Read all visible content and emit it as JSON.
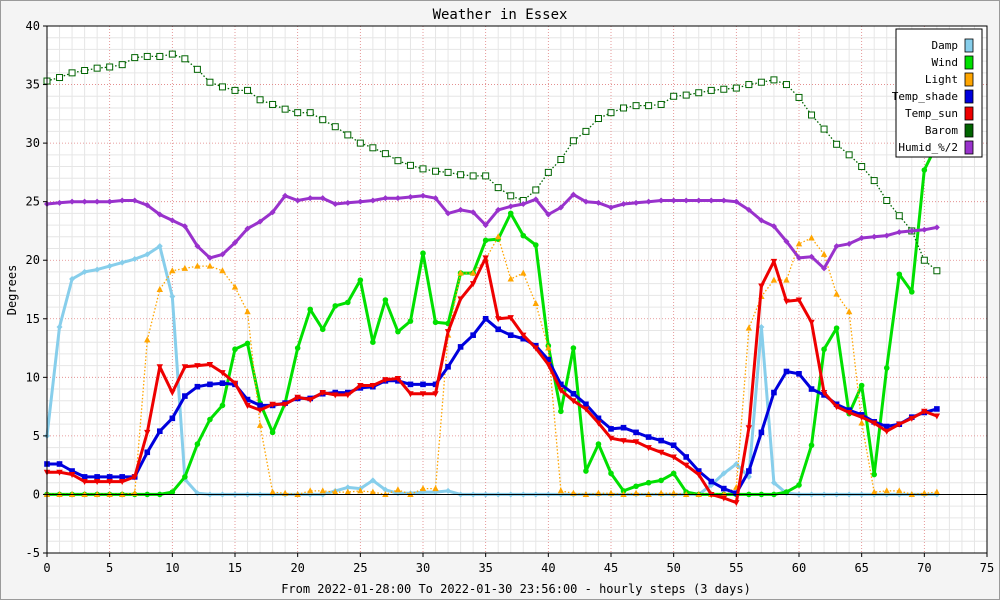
{
  "chart_data": {
    "type": "line",
    "title": "Weather in Essex",
    "xlabel": "From 2022-01-28:00 To 2022-01-30 23:56:00 - hourly steps (3 days)",
    "ylabel": "Degrees",
    "xlim": [
      0,
      75
    ],
    "ylim": [
      -5,
      40
    ],
    "xticks": [
      0,
      5,
      10,
      15,
      20,
      25,
      30,
      35,
      40,
      45,
      50,
      55,
      60,
      65,
      70,
      75
    ],
    "yticks": [
      -5,
      0,
      5,
      10,
      15,
      20,
      25,
      30,
      35,
      40
    ],
    "grid": true,
    "legend_position": "top-right",
    "series": [
      {
        "name": "Damp",
        "color": "#87ceeb",
        "style": "thick",
        "marker": "diamond",
        "y": [
          5.0,
          14.3,
          18.4,
          19.0,
          19.2,
          19.5,
          19.8,
          20.1,
          20.5,
          21.2,
          16.9,
          1.3,
          0.1,
          0.0,
          0.0,
          0.0,
          0.0,
          0.0,
          0.0,
          0.0,
          0.0,
          0.0,
          0.0,
          0.3,
          0.6,
          0.5,
          1.2,
          0.4,
          0.1,
          0.1,
          0.2,
          0.2,
          0.3,
          0.0,
          0.0,
          0.0,
          0.0,
          0.0,
          0.0,
          0.0,
          0.0,
          0.0,
          0.0,
          0.0,
          0.0,
          0.0,
          0.0,
          0.0,
          0.0,
          0.0,
          0.0,
          0.0,
          0.0,
          0.8,
          1.8,
          2.6,
          1.5,
          14.3,
          1.0,
          0.1,
          0.0,
          0.0,
          0.0,
          0.0,
          0.0,
          0.0,
          0.0,
          0.0,
          0.0,
          0.0,
          0.0,
          0.0
        ]
      },
      {
        "name": "Wind",
        "color": "#00e000",
        "style": "thick",
        "marker": "circle",
        "y": [
          0.0,
          0.0,
          0.0,
          0.0,
          0.0,
          0.0,
          0.0,
          0.0,
          0.0,
          0.0,
          0.2,
          1.5,
          4.3,
          6.4,
          7.6,
          12.4,
          12.9,
          7.8,
          5.3,
          7.8,
          12.5,
          15.8,
          14.1,
          16.1,
          16.4,
          18.3,
          13.0,
          16.6,
          13.9,
          14.8,
          20.6,
          14.7,
          14.6,
          18.9,
          18.9,
          21.7,
          21.8,
          24.0,
          22.1,
          21.3,
          12.7,
          7.1,
          12.5,
          2.0,
          4.3,
          1.8,
          0.3,
          0.7,
          1.0,
          1.2,
          1.8,
          0.2,
          0.0,
          0.0,
          0.0,
          0.0,
          0.0,
          0.0,
          0.0,
          0.2,
          0.8,
          4.2,
          12.4,
          14.2,
          6.9,
          9.3,
          1.7,
          10.8,
          18.8,
          17.3,
          27.7,
          29.9
        ]
      },
      {
        "name": "Light",
        "color": "#ffa500",
        "style": "dotted",
        "marker": "triangle-up",
        "y": [
          0.0,
          0.0,
          0.0,
          0.0,
          0.0,
          0.0,
          0.0,
          0.1,
          13.2,
          17.5,
          19.1,
          19.3,
          19.5,
          19.5,
          19.1,
          17.7,
          15.6,
          5.9,
          0.2,
          0.1,
          0.0,
          0.3,
          0.3,
          0.2,
          0.2,
          0.3,
          0.2,
          0.0,
          0.4,
          0.0,
          0.5,
          0.5,
          13.6,
          18.9,
          18.9,
          20.1,
          22.0,
          18.4,
          18.9,
          16.3,
          12.5,
          0.3,
          0.1,
          0.0,
          0.1,
          0.1,
          0.0,
          0.1,
          0.0,
          0.1,
          0.1,
          0.0,
          0.0,
          0.0,
          0.0,
          0.6,
          14.2,
          16.9,
          18.3,
          18.3,
          21.4,
          21.9,
          20.5,
          17.1,
          15.6,
          6.1,
          0.2,
          0.3,
          0.3,
          0.0,
          0.1,
          0.2
        ]
      },
      {
        "name": "Temp_shade",
        "color": "#0000dd",
        "style": "thick",
        "marker": "square",
        "y": [
          2.6,
          2.6,
          2.0,
          1.5,
          1.5,
          1.5,
          1.5,
          1.5,
          3.6,
          5.4,
          6.5,
          8.4,
          9.2,
          9.4,
          9.5,
          9.4,
          8.1,
          7.6,
          7.6,
          7.8,
          8.2,
          8.2,
          8.6,
          8.7,
          8.7,
          9.1,
          9.2,
          9.7,
          9.7,
          9.4,
          9.4,
          9.4,
          10.9,
          12.6,
          13.6,
          15.0,
          14.1,
          13.6,
          13.3,
          12.7,
          11.5,
          9.4,
          8.6,
          7.7,
          6.5,
          5.6,
          5.7,
          5.3,
          4.9,
          4.6,
          4.2,
          3.2,
          2.0,
          1.1,
          0.5,
          0.1,
          2.0,
          5.3,
          8.7,
          10.5,
          10.3,
          9.0,
          8.5,
          7.7,
          7.2,
          6.8,
          6.2,
          5.8,
          6.0,
          6.6,
          7.0,
          7.3
        ]
      },
      {
        "name": "Temp_sun",
        "color": "#ee0000",
        "style": "thick",
        "marker": "triangle-down",
        "y": [
          1.9,
          1.9,
          1.7,
          1.1,
          1.1,
          1.1,
          1.1,
          1.5,
          5.3,
          10.9,
          8.7,
          10.9,
          11.0,
          11.1,
          10.4,
          9.5,
          7.6,
          7.2,
          7.7,
          7.7,
          8.3,
          8.1,
          8.7,
          8.5,
          8.5,
          9.3,
          9.3,
          9.8,
          9.9,
          8.6,
          8.6,
          8.6,
          13.9,
          16.7,
          18.0,
          20.2,
          15.0,
          15.1,
          13.6,
          12.5,
          11.1,
          8.9,
          8.0,
          7.3,
          6.1,
          4.8,
          4.6,
          4.5,
          4.0,
          3.6,
          3.2,
          2.5,
          1.7,
          0.0,
          -0.3,
          -0.7,
          5.7,
          17.8,
          19.9,
          16.5,
          16.6,
          14.7,
          8.7,
          7.5,
          7.0,
          6.6,
          6.1,
          5.4,
          6.0,
          6.5,
          7.1,
          6.7
        ]
      },
      {
        "name": "Barom",
        "color": "#006400",
        "style": "dotted",
        "marker": "hollow-square",
        "y": [
          35.3,
          35.6,
          36.0,
          36.2,
          36.4,
          36.5,
          36.7,
          37.3,
          37.4,
          37.4,
          37.6,
          37.2,
          36.3,
          35.2,
          34.8,
          34.5,
          34.5,
          33.7,
          33.3,
          32.9,
          32.6,
          32.6,
          32.0,
          31.4,
          30.7,
          30.0,
          29.6,
          29.1,
          28.5,
          28.1,
          27.8,
          27.6,
          27.5,
          27.3,
          27.2,
          27.2,
          26.2,
          25.5,
          25.1,
          26.0,
          27.5,
          28.6,
          30.2,
          31.0,
          32.1,
          32.6,
          33.0,
          33.2,
          33.2,
          33.3,
          34.0,
          34.1,
          34.3,
          34.5,
          34.6,
          34.7,
          35.0,
          35.2,
          35.4,
          35.0,
          33.9,
          32.4,
          31.2,
          29.9,
          29.0,
          28.0,
          26.8,
          25.1,
          23.8,
          22.5,
          20.0,
          19.1
        ]
      },
      {
        "name": "Humid_%/2",
        "color": "#9932cc",
        "style": "thick",
        "marker": "diamond",
        "y": [
          24.8,
          24.9,
          25.0,
          25.0,
          25.0,
          25.0,
          25.1,
          25.1,
          24.7,
          23.9,
          23.4,
          22.9,
          21.2,
          20.2,
          20.5,
          21.5,
          22.7,
          23.3,
          24.1,
          25.5,
          25.1,
          25.3,
          25.3,
          24.8,
          24.9,
          25.0,
          25.1,
          25.3,
          25.3,
          25.4,
          25.5,
          25.3,
          24.0,
          24.3,
          24.1,
          23.0,
          24.3,
          24.6,
          24.8,
          25.2,
          23.9,
          24.5,
          25.6,
          25.0,
          24.9,
          24.5,
          24.8,
          24.9,
          25.0,
          25.1,
          25.1,
          25.1,
          25.1,
          25.1,
          25.1,
          25.0,
          24.3,
          23.4,
          22.9,
          21.6,
          20.2,
          20.3,
          19.3,
          21.2,
          21.4,
          21.9,
          22.0,
          22.1,
          22.4,
          22.5,
          22.6,
          22.8
        ]
      }
    ]
  }
}
